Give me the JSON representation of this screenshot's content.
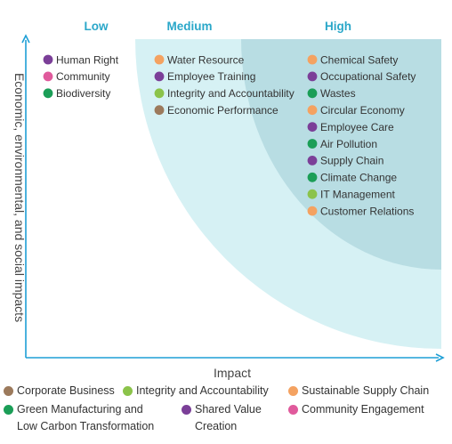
{
  "chart_data": {
    "type": "scatter",
    "title": "",
    "xlabel": "Impact",
    "ylabel": "Economic, environmental, and social impacts",
    "zones": [
      {
        "key": "low",
        "label": "Low",
        "color": "#ffffff"
      },
      {
        "key": "medium",
        "label": "Medium",
        "color": "#d6f1f4"
      },
      {
        "key": "high",
        "label": "High",
        "color": "#b8dde3"
      }
    ],
    "categories": [
      {
        "key": "corporate",
        "label": "Corporate Business",
        "color": "#9c7a5c"
      },
      {
        "key": "integrity",
        "label": "Integrity and  Accountability",
        "color": "#8bc34a"
      },
      {
        "key": "supply",
        "label": "Sustainable Supply Chain",
        "color": "#f4a261"
      },
      {
        "key": "green",
        "label": "Green Manufacturing and Low Carbon Transformation",
        "color": "#1b9e57"
      },
      {
        "key": "shared",
        "label": "Shared Value Creation",
        "color": "#7b3f98"
      },
      {
        "key": "community",
        "label": "Community Engagement",
        "color": "#e05a9c"
      }
    ],
    "topics": [
      {
        "zone": "low",
        "label": "Human Right",
        "category": "shared"
      },
      {
        "zone": "low",
        "label": "Community",
        "category": "community"
      },
      {
        "zone": "low",
        "label": "Biodiversity",
        "category": "green"
      },
      {
        "zone": "medium",
        "label": "Water Resource",
        "category": "supply"
      },
      {
        "zone": "medium",
        "label": "Employee Training",
        "category": "shared"
      },
      {
        "zone": "medium",
        "label": "Integrity and Accountability",
        "category": "integrity"
      },
      {
        "zone": "medium",
        "label": "Economic Performance",
        "category": "corporate"
      },
      {
        "zone": "high",
        "label": "Chemical Safety",
        "category": "supply"
      },
      {
        "zone": "high",
        "label": "Occupational Safety",
        "category": "shared"
      },
      {
        "zone": "high",
        "label": "Wastes",
        "category": "green"
      },
      {
        "zone": "high",
        "label": "Circular Economy",
        "category": "supply"
      },
      {
        "zone": "high",
        "label": "Employee Care",
        "category": "shared"
      },
      {
        "zone": "high",
        "label": "Air Pollution",
        "category": "green"
      },
      {
        "zone": "high",
        "label": "Supply Chain",
        "category": "shared"
      },
      {
        "zone": "high",
        "label": "Climate Change",
        "category": "green"
      },
      {
        "zone": "high",
        "label": "IT Management",
        "category": "integrity"
      },
      {
        "zone": "high",
        "label": "Customer Relations",
        "category": "supply"
      }
    ]
  },
  "legend": [
    {
      "label": "Corporate Business",
      "color": "#9c7a5c"
    },
    {
      "label": "Integrity and  Accountability",
      "color": "#8bc34a"
    },
    {
      "label": "Sustainable Supply Chain",
      "color": "#f4a261"
    },
    {
      "label": "Green Manufacturing and Low Carbon Transformation",
      "color": "#1b9e57"
    },
    {
      "label": "Shared Value Creation",
      "color": "#7b3f98"
    },
    {
      "label": "Community Engagement",
      "color": "#e05a9c"
    }
  ],
  "colors": {
    "accent": "#2aa7c9",
    "axis": "#1e9fd6"
  }
}
